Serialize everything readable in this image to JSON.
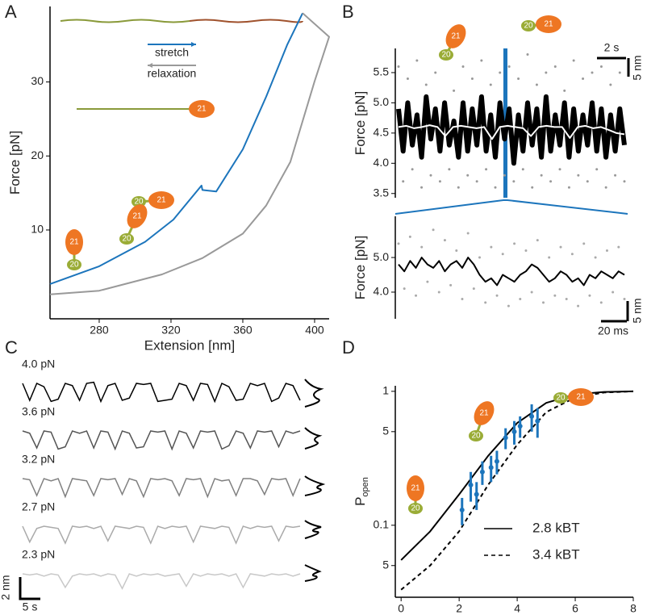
{
  "chart_data": [
    {
      "panel": "A",
      "type": "line",
      "xlabel": "Extension [nm]",
      "ylabel": "Force [pN]",
      "xlim": [
        252.6,
        408.1
      ],
      "ylim": [
        -2,
        40.2
      ],
      "xticks": [
        280,
        320,
        360,
        400
      ],
      "yticks": [
        10,
        20,
        30
      ],
      "annotations": [
        "21",
        "20"
      ],
      "series": [
        {
          "name": "stretch",
          "color": "#1c75bc",
          "x": [
            252.6,
            280,
            305.6,
            321.3,
            337,
            337.5,
            345.2,
            360,
            373,
            384.7,
            393.3
          ],
          "values": [
            2.7,
            5.1,
            8.4,
            11.4,
            16,
            15.4,
            15.2,
            20.9,
            28,
            35,
            39.3
          ]
        },
        {
          "name": "relaxation",
          "color": "#999999",
          "x": [
            393.3,
            408.1,
            400,
            386.5,
            373,
            360,
            337.5,
            315,
            280,
            252.6
          ],
          "values": [
            39.3,
            36.1,
            30.1,
            19.2,
            13.3,
            9.5,
            6.2,
            4.0,
            1.8,
            1.3
          ]
        }
      ]
    },
    {
      "panel": "B",
      "type": "line",
      "ylabel": "Force [pN]",
      "ylim": [
        3.43,
        5.9
      ],
      "yticks": [
        3.5,
        {
          "value": 4,
          "label": "4.0"
        },
        4.5,
        {
          "value": 5,
          "label": "5.0"
        },
        5.5
      ],
      "scale_bars": [
        "2 s",
        "5 nm"
      ],
      "annotations": [
        "21",
        "20"
      ],
      "series": [
        {
          "color": "#999999",
          "marker": "dot",
          "values": [
            5.6,
            3.7,
            5.4,
            3.9,
            5.7,
            3.6,
            5.3,
            3.8,
            5.5,
            3.7,
            5.8,
            3.9,
            5.2,
            3.6,
            5.6,
            3.8,
            5.4,
            3.7,
            5.7,
            3.9,
            5.3,
            3.6,
            5.5,
            3.8,
            5.6,
            3.7,
            5.4,
            3.9,
            5.8,
            3.6,
            5.3,
            3.8,
            5.5,
            3.7,
            5.6,
            3.9,
            5.2,
            3.6,
            5.7,
            3.8,
            5.4,
            3.7,
            5.5,
            3.9,
            5.6,
            3.6,
            5.3,
            3.8,
            5.5,
            3.7
          ]
        },
        {
          "color": "#000000",
          "values": [
            4.9,
            4.2,
            5.0,
            4.3,
            4.8,
            4.1,
            5.1,
            4.4,
            4.9,
            4.2,
            5.0,
            4.3,
            4.7,
            4.1,
            5.0,
            4.2,
            4.9,
            4.3,
            5.1,
            4.2,
            4.8,
            4.1,
            5.0,
            4.4,
            4.9,
            4.0,
            4.8,
            4.2,
            5.0,
            4.3,
            4.9,
            4.1,
            5.1,
            4.2,
            4.8,
            4.3,
            5.0,
            4.1,
            4.9,
            4.2,
            4.8,
            4.3,
            5.0,
            4.2,
            4.9,
            4.1,
            4.8,
            4.2,
            4.9,
            4.3
          ]
        },
        {
          "color": "#ffffff",
          "values": [
            4.6,
            4.62,
            4.58,
            4.6,
            4.63,
            4.6,
            4.45,
            4.6,
            4.62,
            4.6,
            4.58,
            4.6,
            4.4,
            4.6,
            4.62,
            4.6,
            4.58,
            4.45,
            4.6,
            4.62,
            4.6,
            4.6,
            4.42,
            4.6,
            4.62,
            4.58,
            4.6,
            4.55,
            4.5,
            4.48
          ]
        }
      ]
    },
    {
      "type": "line",
      "ylabel": "Force [pN]",
      "ylim": [
        3.23,
        6.19
      ],
      "yticks": [
        {
          "value": 4,
          "label": "4.0"
        },
        {
          "value": 5,
          "label": "5.0"
        }
      ],
      "scale_bars": [
        "20 ms",
        "5 nm"
      ],
      "series": [
        {
          "color": "#aaaaaa",
          "marker": "dot",
          "values": [
            5.4,
            4.1,
            5.6,
            3.9,
            5.3,
            4.3,
            5.8,
            4.0,
            5.5,
            4.2,
            5.2,
            3.8,
            5.7,
            4.1,
            5.0,
            3.7,
            5.3,
            3.9,
            5.1,
            3.6,
            5.4,
            3.8,
            5.2,
            4.0,
            5.5,
            3.7,
            5.0,
            3.9,
            5.3,
            3.8,
            5.1,
            3.6,
            5.4,
            3.9,
            5.0,
            3.7,
            5.2,
            4.0,
            5.3,
            3.8
          ]
        },
        {
          "color": "#000000",
          "values": [
            4.8,
            4.6,
            4.9,
            4.7,
            5.0,
            4.8,
            4.7,
            4.9,
            4.6,
            4.8,
            4.9,
            4.7,
            5.0,
            4.8,
            4.5,
            4.3,
            4.4,
            4.2,
            4.5,
            4.4,
            4.3,
            4.5,
            4.6,
            4.8,
            4.7,
            4.5,
            4.3,
            4.4,
            4.6,
            4.5,
            4.3,
            4.4,
            4.2,
            4.5,
            4.4,
            4.6,
            4.5,
            4.4,
            4.6,
            4.5
          ]
        }
      ]
    },
    {
      "panel": "C",
      "type": "traces",
      "scale_bars": [
        "2 nm",
        "5 s"
      ],
      "series": [
        {
          "name": "4.0 pN",
          "color": "#000000",
          "values": [
            0,
            -1.5,
            0,
            -0.3,
            -1.6,
            -1.4,
            0,
            -0.2,
            -1.5,
            0,
            0.1,
            -1.6,
            -0.2,
            0,
            -1.5,
            -1.3,
            0,
            -0.1,
            0,
            -1.6,
            -1.5,
            -1.4,
            0,
            -0.2,
            -1.5,
            0,
            -0.1,
            -1.6,
            0,
            -0.3,
            -1.5,
            -1.4,
            0,
            -0.2,
            0,
            -1.6,
            -1.3,
            0,
            -0.2,
            -1.5
          ]
        },
        {
          "name": "3.6 pN",
          "color": "#555555",
          "values": [
            0,
            -0.2,
            -1.5,
            0,
            -0.1,
            -1.6,
            -1.4,
            0,
            -0.2,
            0,
            -1.5,
            0,
            -0.1,
            -1.6,
            0,
            -0.2,
            -1.5,
            -1.4,
            0,
            -0.1,
            0,
            -1.6,
            0,
            -0.2,
            -1.5,
            0,
            -0.1,
            0,
            -1.6,
            -1.3,
            0,
            -0.2,
            -1.5,
            0,
            -0.1,
            0,
            -1.4,
            0,
            -0.2,
            0
          ]
        },
        {
          "name": "3.2 pN",
          "color": "#808080",
          "values": [
            0,
            -0.1,
            -1.5,
            0,
            -0.2,
            0,
            -1.6,
            0,
            -0.1,
            -0.2,
            -1.5,
            0,
            -0.1,
            0,
            -1.4,
            0,
            -0.2,
            -1.6,
            0,
            -0.1,
            0,
            -0.2,
            -1.5,
            0,
            -0.1,
            0,
            -1.6,
            0,
            -0.2,
            -0.1,
            -1.5,
            0,
            0,
            -0.2,
            -1.4,
            0,
            -0.1,
            0,
            -1.5,
            0
          ]
        },
        {
          "name": "2.7 pN",
          "color": "#aaaaaa",
          "values": [
            0,
            -1.4,
            -0.2,
            0,
            -0.1,
            -0.2,
            -1.5,
            0,
            -0.1,
            0,
            -0.2,
            0,
            -1.3,
            0,
            -0.1,
            -0.2,
            0,
            -0.1,
            -1.5,
            0,
            -0.2,
            0,
            -0.1,
            0,
            -1.4,
            0,
            -0.1,
            -0.2,
            0,
            -0.1,
            -1.5,
            0,
            -0.2,
            0,
            -0.1,
            0,
            -1.3,
            0,
            -0.1,
            0
          ]
        },
        {
          "name": "2.3 pN",
          "color": "#c8c8c8",
          "values": [
            0,
            -0.1,
            0,
            -0.2,
            0,
            -0.1,
            -1.2,
            -0.2,
            0,
            -0.1,
            0,
            -0.2,
            0,
            -0.1,
            -1.3,
            0,
            -0.2,
            0,
            -0.1,
            0,
            -0.2,
            -0.1,
            0,
            -1.1,
            0,
            -0.2,
            0,
            -0.1,
            0,
            -0.2,
            0,
            -1.2,
            0,
            -0.1,
            -0.2,
            0,
            -0.1,
            0,
            -0.2,
            0
          ]
        }
      ]
    },
    {
      "panel": "D",
      "type": "line",
      "log_y": true,
      "xlabel": "Force [pN]",
      "ylabel": "P",
      "ylabel_sub": "open",
      "xlim": [
        -0.2,
        8
      ],
      "ylim": [
        0.029,
        1.1
      ],
      "xticks": [
        0,
        2,
        4,
        6,
        8
      ],
      "yticks": [
        {
          "value": 0.05,
          "label": "5"
        },
        0.1,
        {
          "value": 0.5,
          "label": "5"
        },
        1
      ],
      "annotations": [
        "21",
        "20"
      ],
      "series": [
        {
          "name": "2.8 kBT",
          "color": "#000000",
          "dash": "solid",
          "x": [
            0,
            1,
            2,
            3,
            4,
            5,
            6,
            7,
            8
          ],
          "values": [
            0.055,
            0.09,
            0.17,
            0.33,
            0.58,
            0.82,
            0.95,
            0.99,
            1.0
          ]
        },
        {
          "name": "3.4 kBT",
          "color": "#000000",
          "dash": "dashed",
          "x": [
            0,
            1,
            2,
            3,
            4,
            5,
            6,
            7,
            8
          ],
          "values": [
            0.033,
            0.05,
            0.09,
            0.2,
            0.4,
            0.7,
            0.9,
            0.98,
            1.0
          ]
        },
        {
          "color": "#1c75bc",
          "x": [
            2.1,
            2.4,
            2.6,
            2.8,
            3.1,
            3.3,
            3.6,
            3.9,
            4.1,
            4.5,
            4.7
          ],
          "values": [
            0.13,
            0.2,
            0.17,
            0.25,
            0.27,
            0.3,
            0.45,
            0.5,
            0.55,
            0.65,
            0.6
          ],
          "errors": [
            0.03,
            0.05,
            0.04,
            0.05,
            0.06,
            0.06,
            0.08,
            0.1,
            0.1,
            0.15,
            0.15
          ]
        }
      ]
    }
  ]
}
